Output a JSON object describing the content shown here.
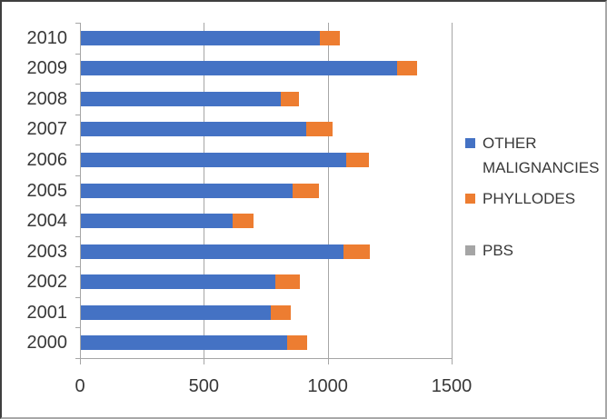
{
  "window": {
    "background": "#ffffff",
    "border_color_dark": "#3f3f3f",
    "border_color_light": "#a8a8a8"
  },
  "chart_data": {
    "type": "bar",
    "orientation": "horizontal",
    "stacked": true,
    "title": "",
    "xlabel": "",
    "ylabel": "",
    "categories": [
      "2010",
      "2009",
      "2008",
      "2007",
      "2006",
      "2005",
      "2004",
      "2003",
      "2002",
      "2001",
      "2000"
    ],
    "category_order": "top-to-bottom",
    "series": [
      {
        "name": "OTHER MALIGNANCIES",
        "color": "#4472C4",
        "values": [
          970,
          1280,
          810,
          915,
          1075,
          860,
          615,
          1065,
          790,
          770,
          835
        ]
      },
      {
        "name": "PHYLLODES",
        "color": "#ED7D31",
        "values": [
          80,
          80,
          75,
          105,
          90,
          105,
          85,
          105,
          100,
          80,
          80
        ]
      },
      {
        "name": "PBS",
        "color": "#A5A5A5",
        "values": [
          0,
          0,
          0,
          0,
          0,
          0,
          0,
          0,
          0,
          0,
          0
        ]
      }
    ],
    "xlim": [
      0,
      1500
    ],
    "x_ticks": [
      0,
      500,
      1000,
      1500
    ],
    "grid": true,
    "legend_position": "right",
    "axis_text_color": "#383838",
    "gridline_color": "#a6a6a6"
  }
}
